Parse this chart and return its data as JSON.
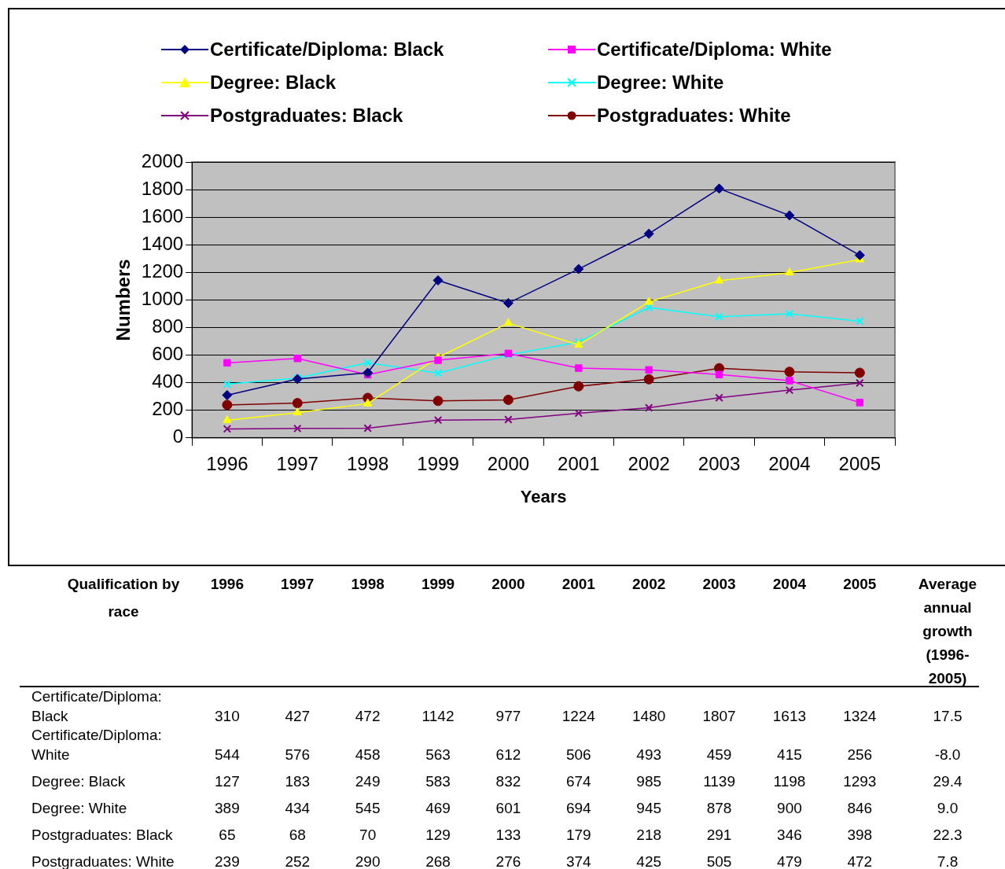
{
  "chart_data": {
    "type": "line",
    "xlabel": "Years",
    "ylabel": "Numbers",
    "categories": [
      "1996",
      "1997",
      "1998",
      "1999",
      "2000",
      "2001",
      "2002",
      "2003",
      "2004",
      "2005"
    ],
    "series": [
      {
        "name": "Certificate/Diploma: Black",
        "color": "#000080",
        "marker": "diamond",
        "values": [
          310,
          427,
          472,
          1142,
          977,
          1224,
          1480,
          1807,
          1613,
          1324
        ]
      },
      {
        "name": "Certificate/Diploma: White",
        "color": "#ff00ff",
        "marker": "square",
        "values": [
          544,
          576,
          458,
          563,
          612,
          506,
          493,
          459,
          415,
          256
        ]
      },
      {
        "name": "Degree: Black",
        "color": "#ffff00",
        "marker": "triangle",
        "values": [
          127,
          183,
          249,
          583,
          832,
          674,
          985,
          1139,
          1198,
          1293
        ]
      },
      {
        "name": "Degree: White",
        "color": "#00ffff",
        "marker": "cross",
        "values": [
          389,
          434,
          545,
          469,
          601,
          694,
          945,
          878,
          900,
          846
        ]
      },
      {
        "name": "Postgraduates: Black",
        "color": "#800080",
        "marker": "cross",
        "values": [
          65,
          68,
          70,
          129,
          133,
          179,
          218,
          291,
          346,
          398
        ]
      },
      {
        "name": "Postgraduates: White",
        "color": "#800000",
        "marker": "circle",
        "values": [
          239,
          252,
          290,
          268,
          276,
          374,
          425,
          505,
          479,
          472
        ]
      }
    ],
    "ylim": [
      0,
      2000
    ],
    "yticks": [
      0,
      200,
      400,
      600,
      800,
      1000,
      1200,
      1400,
      1600,
      1800,
      2000
    ],
    "grid": "y",
    "legend": "top",
    "data_labels": true,
    "annotations": [
      "Qualification by race",
      "Average annual growth (1996-2005)",
      "17.5",
      "-8.0",
      "29.4",
      "9.0",
      "22.3",
      "7.8"
    ]
  }
}
